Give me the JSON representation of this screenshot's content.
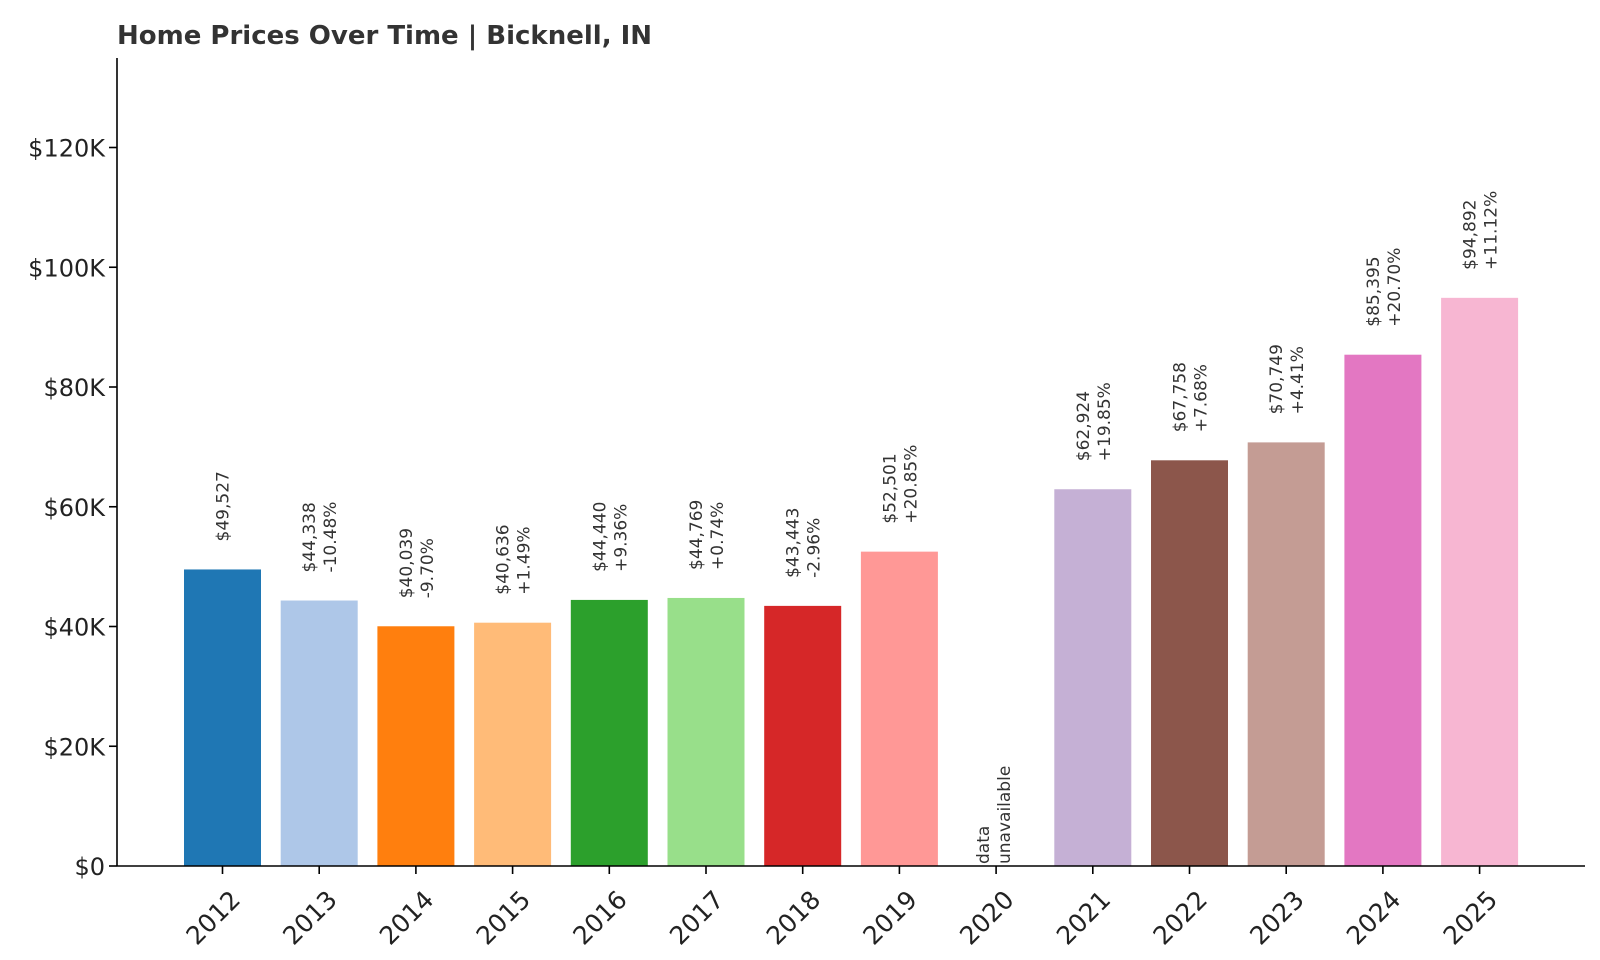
{
  "chart_data": {
    "type": "bar",
    "title": "Home Prices Over Time | Bicknell, IN",
    "xlabel": "",
    "ylabel": "",
    "ylim": [
      0,
      135000
    ],
    "yticks": [
      {
        "value": 0,
        "label": "$0"
      },
      {
        "value": 20000,
        "label": "$20K"
      },
      {
        "value": 40000,
        "label": "$40K"
      },
      {
        "value": 60000,
        "label": "$60K"
      },
      {
        "value": 80000,
        "label": "$80K"
      },
      {
        "value": 100000,
        "label": "$100K"
      },
      {
        "value": 120000,
        "label": "$120K"
      }
    ],
    "categories": [
      "2012",
      "2013",
      "2014",
      "2015",
      "2016",
      "2017",
      "2018",
      "2019",
      "2020",
      "2021",
      "2022",
      "2023",
      "2024",
      "2025"
    ],
    "values": [
      49527,
      44338,
      40039,
      40636,
      44440,
      44769,
      43443,
      52501,
      null,
      62924,
      67758,
      70749,
      85395,
      94892
    ],
    "value_labels": [
      "$49,527",
      "$44,338",
      "$40,039",
      "$40,636",
      "$44,440",
      "$44,769",
      "$43,443",
      "$52,501",
      "",
      "$62,924",
      "$67,758",
      "$70,749",
      "$85,395",
      "$94,892"
    ],
    "change_labels": [
      "",
      "-10.48%",
      "-9.70%",
      "+1.49%",
      "+9.36%",
      "+0.74%",
      "-2.96%",
      "+20.85%",
      "",
      "+19.85%",
      "+7.68%",
      "+4.41%",
      "+20.70%",
      "+11.12%"
    ],
    "missing_label_lines": [
      "data",
      "unavailable"
    ],
    "colors": [
      "#1f77b4",
      "#aec7e8",
      "#ff7f0e",
      "#ffbb78",
      "#2ca02c",
      "#98df8a",
      "#d62728",
      "#ff9896",
      "#9467bd",
      "#c5b0d5",
      "#8c564b",
      "#c49c94",
      "#e377c2",
      "#f7b6d2"
    ],
    "grid": false,
    "legend": "none"
  }
}
